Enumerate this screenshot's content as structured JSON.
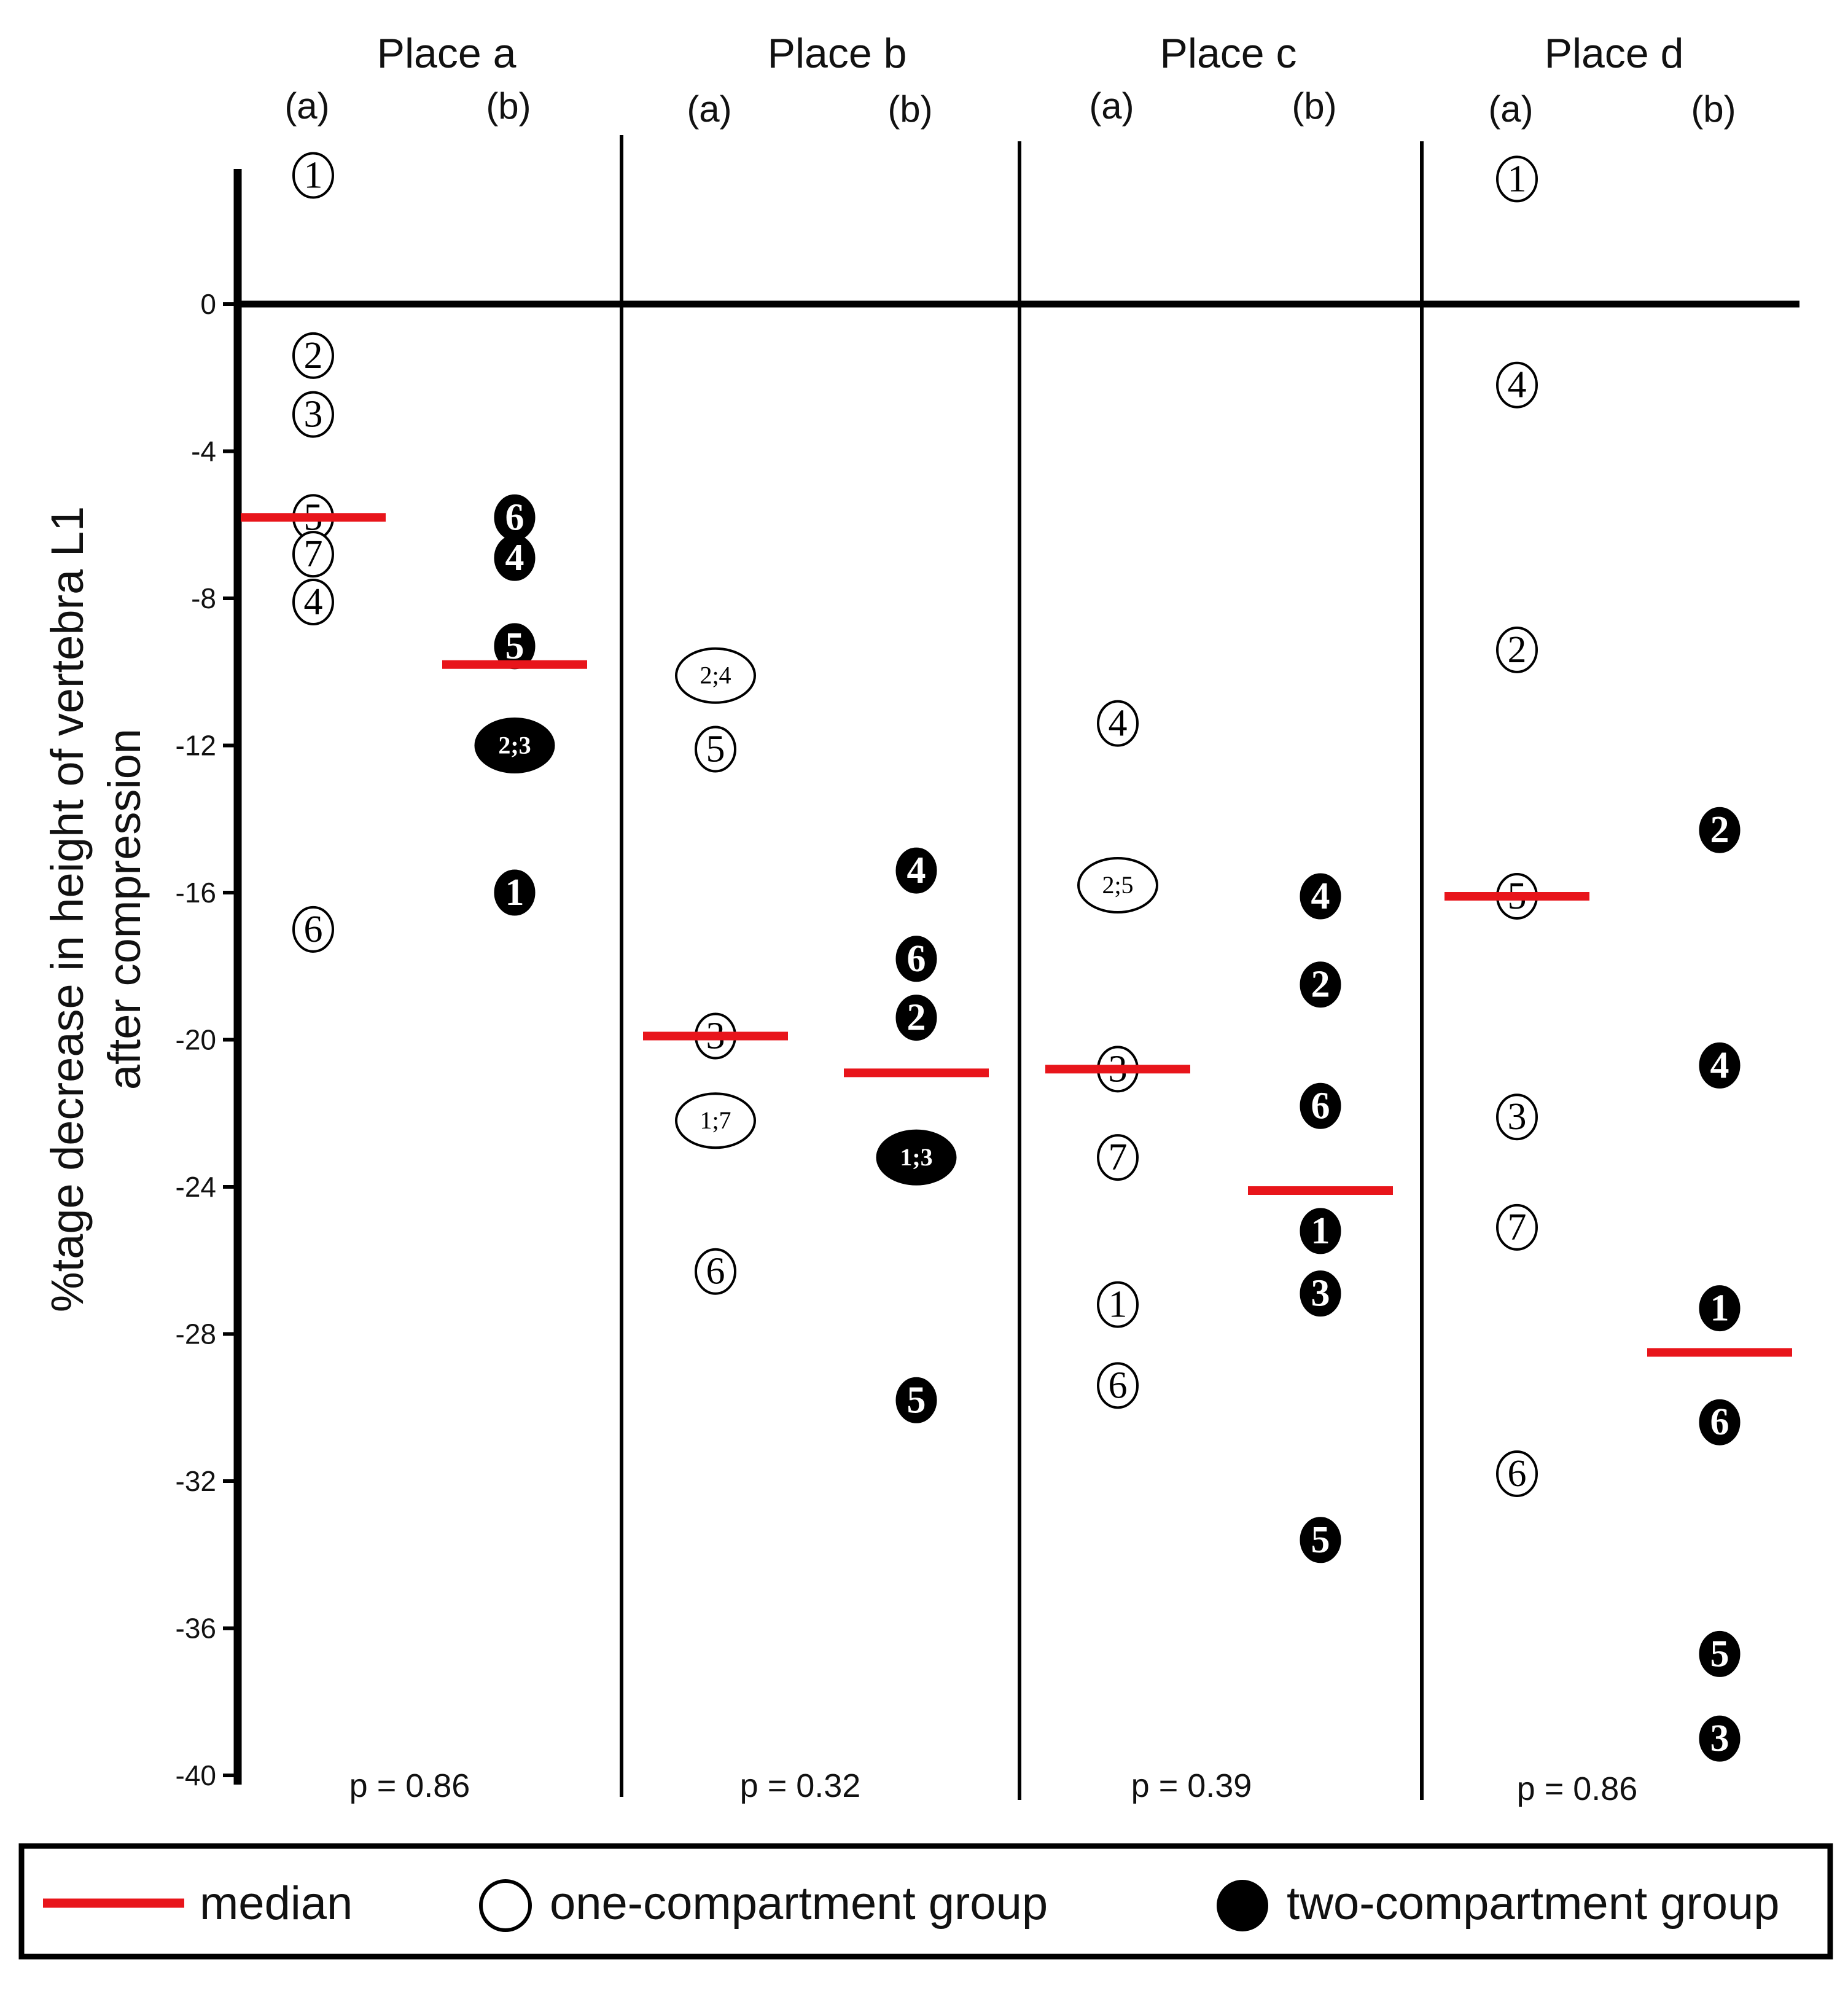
{
  "chart_data": {
    "type": "scatter",
    "title": "",
    "ylabel": [
      "%tage decrease in height of vertebra L1",
      "after compression"
    ],
    "ylim": [
      -40,
      3.5
    ],
    "yticks": [
      0,
      -4,
      -8,
      -12,
      -16,
      -20,
      -24,
      -28,
      -32,
      -36,
      -40
    ],
    "ytick_labels": [
      "0",
      "-4",
      "-8",
      "-12",
      "-16",
      "-20",
      "-24",
      "-28",
      "-32",
      "-36",
      "-40"
    ],
    "group_labels": [
      "(a)",
      "(b)"
    ],
    "places": [
      {
        "name": "Place a",
        "p_value": "p = 0.86",
        "median_a": -5.8,
        "median_b": -9.8,
        "points_a": [
          {
            "label": "1",
            "value": 3.5
          },
          {
            "label": "2",
            "value": -1.4
          },
          {
            "label": "3",
            "value": -3.0
          },
          {
            "label": "5",
            "value": -5.8
          },
          {
            "label": "7",
            "value": -6.8
          },
          {
            "label": "4",
            "value": -8.1
          },
          {
            "label": "6",
            "value": -17.0
          }
        ],
        "points_b": [
          {
            "label": "6",
            "value": -5.8
          },
          {
            "label": "4",
            "value": -6.9
          },
          {
            "label": "5",
            "value": -9.3
          },
          {
            "label": "2;3",
            "value": -12.0
          },
          {
            "label": "1",
            "value": -16.0
          }
        ]
      },
      {
        "name": "Place b",
        "p_value": "p = 0.32",
        "median_a": -19.9,
        "median_b": -20.9,
        "points_a": [
          {
            "label": "2;4",
            "value": -10.1
          },
          {
            "label": "5",
            "value": -12.1
          },
          {
            "label": "3",
            "value": -19.9
          },
          {
            "label": "1;7",
            "value": -22.2
          },
          {
            "label": "6",
            "value": -26.3
          }
        ],
        "points_b": [
          {
            "label": "4",
            "value": -15.4
          },
          {
            "label": "6",
            "value": -17.8
          },
          {
            "label": "2",
            "value": -19.4
          },
          {
            "label": "1;3",
            "value": -23.2
          },
          {
            "label": "5",
            "value": -29.8
          }
        ]
      },
      {
        "name": "Place c",
        "p_value": "p = 0.39",
        "median_a": -20.8,
        "median_b": -24.1,
        "points_a": [
          {
            "label": "4",
            "value": -11.4
          },
          {
            "label": "2;5",
            "value": -15.8
          },
          {
            "label": "3",
            "value": -20.8
          },
          {
            "label": "7",
            "value": -23.2
          },
          {
            "label": "1",
            "value": -27.2
          },
          {
            "label": "6",
            "value": -29.4
          }
        ],
        "points_b": [
          {
            "label": "4",
            "value": -16.1
          },
          {
            "label": "2",
            "value": -18.5
          },
          {
            "label": "6",
            "value": -21.8
          },
          {
            "label": "1",
            "value": -25.2
          },
          {
            "label": "3",
            "value": -26.9
          },
          {
            "label": "5",
            "value": -33.6
          }
        ]
      },
      {
        "name": "Place d",
        "p_value": "p = 0.86",
        "median_a": -16.1,
        "median_b": -28.5,
        "points_a": [
          {
            "label": "1",
            "value": 3.4
          },
          {
            "label": "4",
            "value": -2.2
          },
          {
            "label": "2",
            "value": -9.4
          },
          {
            "label": "5",
            "value": -16.1
          },
          {
            "label": "3",
            "value": -22.1
          },
          {
            "label": "7",
            "value": -25.1
          },
          {
            "label": "6",
            "value": -31.8
          }
        ],
        "points_b": [
          {
            "label": "2",
            "value": -14.3
          },
          {
            "label": "4",
            "value": -20.7
          },
          {
            "label": "1",
            "value": -27.3
          },
          {
            "label": "6",
            "value": -30.4
          },
          {
            "label": "5",
            "value": -36.7
          },
          {
            "label": "3",
            "value": -39.0
          }
        ]
      }
    ],
    "legend": {
      "position": "bottom",
      "entries": [
        "median",
        "one-compartment group",
        "two-compartment group"
      ]
    },
    "colors": {
      "median": "#e8151b",
      "axis": "#000000",
      "open_fill": "#ffffff",
      "filled": "#000000"
    }
  }
}
